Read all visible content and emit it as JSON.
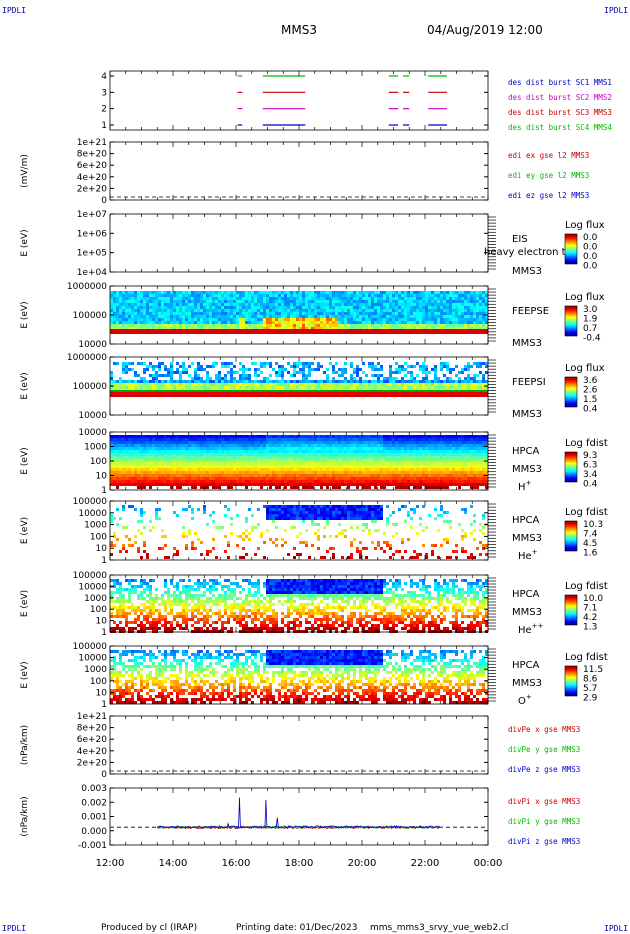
{
  "corner_labels": {
    "tl": "IPDLI",
    "tr": "IPDLI",
    "bl": "IPDLI",
    "br": "IPDLI"
  },
  "header": {
    "spacecraft": "MMS3",
    "datetime": "04/Aug/2019 12:00"
  },
  "footer": {
    "producer": "Produced by cl (IRAP)",
    "printing_date": "Printing date: 01/Dec/2023",
    "filename": "mms_mms3_srvy_vue_web2.cl"
  },
  "colors": {
    "c1": "#0000cc",
    "c2": "#cc00cc",
    "c3": "#cc0000",
    "c4": "#00bb00",
    "x": "#cc0000",
    "y": "#00bb00",
    "z": "#0000cc"
  },
  "chart_data": {
    "type": "multi-panel time series / spectrogram",
    "x_axis": {
      "range_hours": [
        12,
        24
      ],
      "ticks": [
        "12:00",
        "14:00",
        "16:00",
        "18:00",
        "20:00",
        "22:00",
        "00:00"
      ]
    },
    "panels": [
      {
        "id": "burst",
        "ylabel": "",
        "yticks": [
          "4",
          "3",
          "2",
          "1"
        ],
        "legend": [
          "des dist burst SC1 MMS1",
          "des dist burst SC2 MMS2",
          "des dist burst SC3 MMS3",
          "des dist burst SC4 MMS4"
        ],
        "intervals_hours": [
          [
            16.05,
            16.2
          ],
          [
            16.85,
            18.2
          ],
          [
            20.85,
            21.15
          ],
          [
            21.3,
            21.5
          ],
          [
            22.1,
            22.7
          ]
        ]
      },
      {
        "id": "edi",
        "ylabel": "(mV/m)",
        "yticks": [
          "1e+21",
          "8e+20",
          "6e+20",
          "4e+20",
          "2e+20",
          "0"
        ],
        "legend": [
          "edi ex gse l2 MMS3",
          "edi ey gse l2 MMS3",
          "edi ez gse l2 MMS3"
        ]
      },
      {
        "id": "eis",
        "ylabel": "E (eV)",
        "yticks": [
          "1e+07",
          "1e+06",
          "1e+05",
          "1e+04"
        ],
        "instrument": [
          "EIS",
          "MMS3"
        ],
        "overlay_text": "heavy electron to",
        "colorbar": {
          "title": "Log flux",
          "ticks": [
            "0.0",
            "0.0",
            "0.0",
            "0.0"
          ]
        }
      },
      {
        "id": "feepse",
        "ylabel": "E (eV)",
        "yticks": [
          "1000000",
          "100000",
          "10000"
        ],
        "instrument": [
          "FEEPSE",
          "MMS3"
        ],
        "colorbar": {
          "title": "Log flux",
          "ticks": [
            "3.0",
            "1.9",
            "0.7",
            "-0.4"
          ]
        }
      },
      {
        "id": "feepsi",
        "ylabel": "E (eV)",
        "yticks": [
          "1000000",
          "100000",
          "10000"
        ],
        "instrument": [
          "FEEPSI",
          "MMS3"
        ],
        "colorbar": {
          "title": "Log flux",
          "ticks": [
            "3.6",
            "2.6",
            "1.5",
            "0.4"
          ]
        }
      },
      {
        "id": "hpca_h",
        "ylabel": "E (eV)",
        "yticks": [
          "10000",
          "1000",
          "100",
          "10",
          "1"
        ],
        "instrument": [
          "HPCA",
          "MMS3"
        ],
        "species": "H",
        "species_sup": "+",
        "colorbar": {
          "title": "Log fdist",
          "ticks": [
            "9.3",
            "6.3",
            "3.4",
            "0.4"
          ]
        }
      },
      {
        "id": "hpca_he",
        "ylabel": "E (eV)",
        "yticks": [
          "100000",
          "10000",
          "1000",
          "100",
          "10",
          "1"
        ],
        "instrument": [
          "HPCA",
          "MMS3"
        ],
        "species": "He",
        "species_sup": "+",
        "colorbar": {
          "title": "Log fdist",
          "ticks": [
            "10.3",
            "7.4",
            "4.5",
            "1.6"
          ]
        }
      },
      {
        "id": "hpca_hepp",
        "ylabel": "E (eV)",
        "yticks": [
          "100000",
          "10000",
          "1000",
          "100",
          "10",
          "1"
        ],
        "instrument": [
          "HPCA",
          "MMS3"
        ],
        "species": "He",
        "species_sup": "++",
        "colorbar": {
          "title": "Log fdist",
          "ticks": [
            "10.0",
            "7.1",
            "4.2",
            "1.3"
          ]
        }
      },
      {
        "id": "hpca_o",
        "ylabel": "E (eV)",
        "yticks": [
          "100000",
          "10000",
          "1000",
          "100",
          "10",
          "1"
        ],
        "instrument": [
          "HPCA",
          "MMS3"
        ],
        "species": "O",
        "species_sup": "+",
        "colorbar": {
          "title": "Log fdist",
          "ticks": [
            "11.5",
            "8.6",
            "5.7",
            "2.9"
          ]
        }
      },
      {
        "id": "divpe",
        "ylabel": "(nPa/km)",
        "yticks": [
          "1e+21",
          "8e+20",
          "6e+20",
          "4e+20",
          "2e+20",
          "0"
        ],
        "legend": [
          "divPe x gse MMS3",
          "divPe y gse MMS3",
          "divPe z gse MMS3"
        ]
      },
      {
        "id": "divpi",
        "ylabel": "(nPa/km)",
        "yticks": [
          "0.003",
          "0.002",
          "0.001",
          "0.000",
          "-0.001"
        ],
        "ylim": [
          -0.0015,
          0.0033
        ],
        "legend": [
          "divPi x gse MMS3",
          "divPi y gse MMS3",
          "divPi z gse MMS3"
        ],
        "spikes": [
          {
            "t": 16.1,
            "v": 0.0025
          },
          {
            "t": 16.95,
            "v": 0.0023
          },
          {
            "t": 17.3,
            "v": 0.0008
          },
          {
            "t": 15.75,
            "v": 0.0003
          }
        ]
      }
    ]
  }
}
